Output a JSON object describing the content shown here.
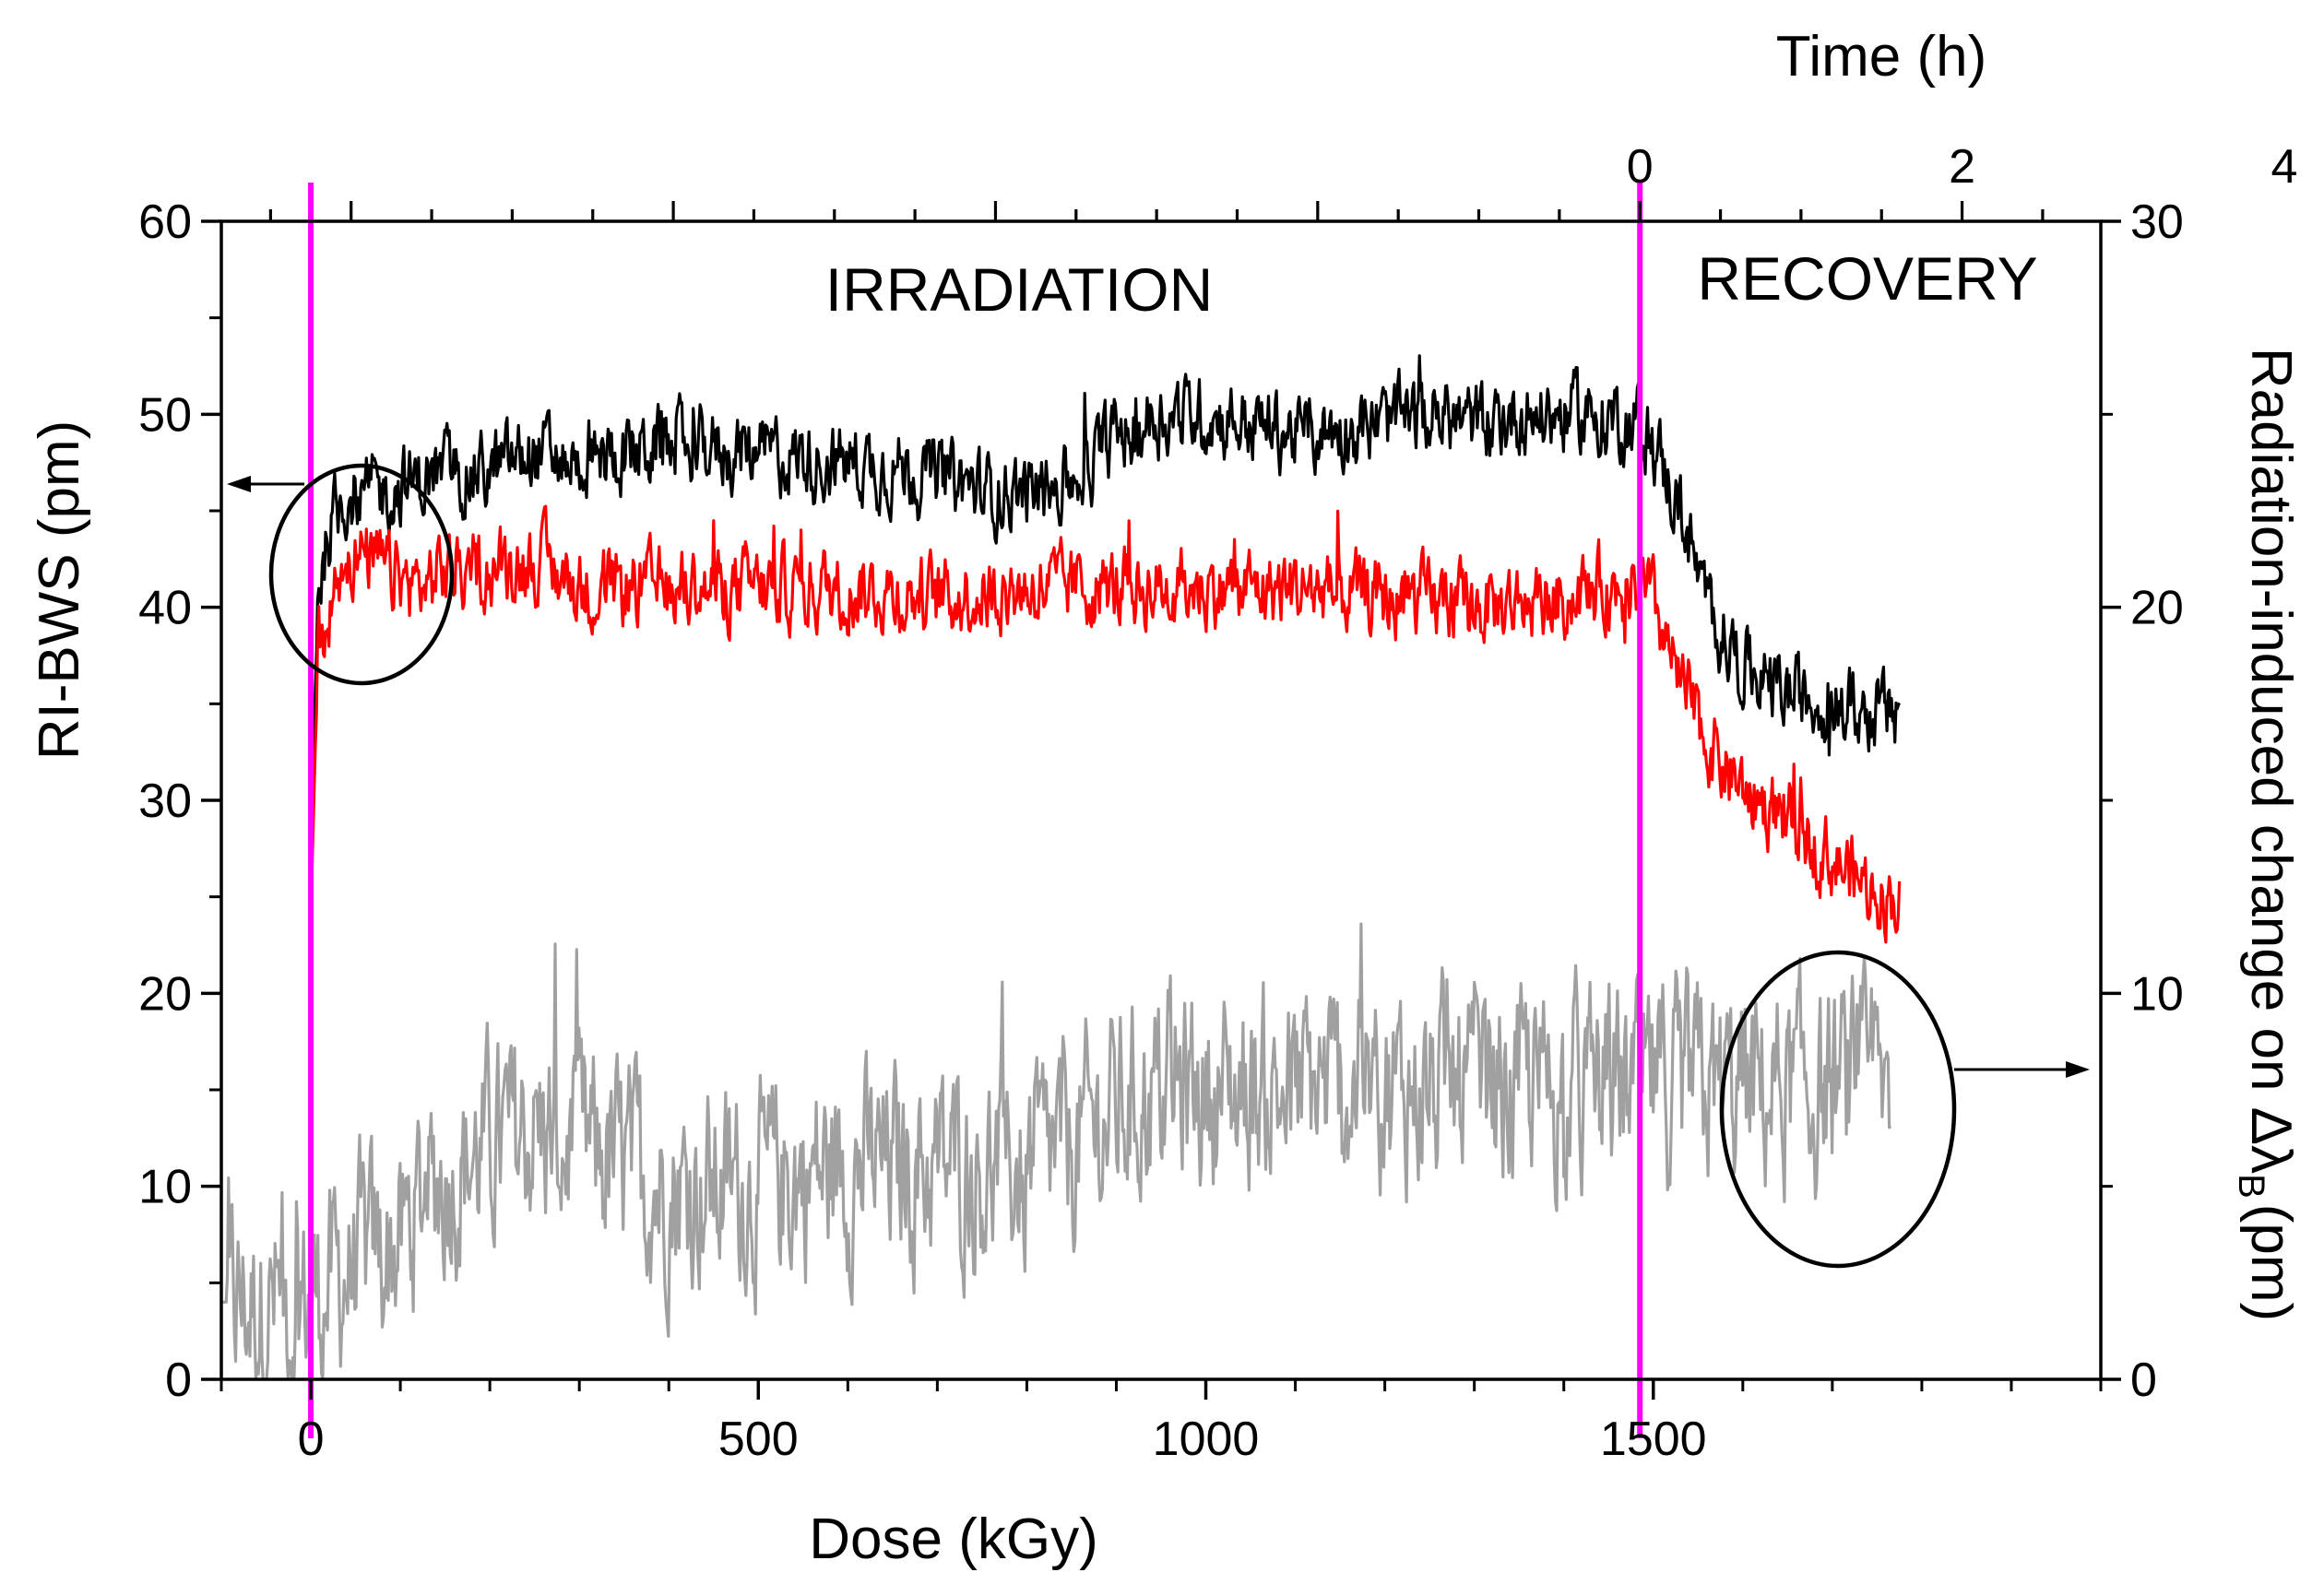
{
  "chart_data": {
    "type": "line",
    "title": "",
    "xlabel": "Dose (kGy)",
    "ylabel": "RI-BWS (pm)",
    "y2label": "Radiation-induced change on Δλ",
    "y2label_sub": "B",
    "y2label_unit": "(pm)",
    "x2label": "Time (h)",
    "xlim": [
      -100,
      2000
    ],
    "ylim": [
      0,
      60
    ],
    "y2lim": [
      0,
      30
    ],
    "x_ticks": [
      0,
      500,
      1000,
      1500
    ],
    "x_tick_labels": [
      "0",
      "500",
      "1000",
      "1500"
    ],
    "y_ticks": [
      0,
      10,
      20,
      30,
      40,
      50,
      60
    ],
    "y_tick_labels": [
      "0",
      "10",
      "20",
      "30",
      "40",
      "50",
      "60"
    ],
    "y2_ticks": [
      0,
      10,
      20,
      30
    ],
    "y2_tick_labels": [
      "0",
      "10",
      "20",
      "30"
    ],
    "x2_ticks_time_h": [
      0,
      2,
      4
    ],
    "x2_tick_labels": [
      "0",
      "2",
      "4"
    ],
    "x2_zero_at_dose": 1485,
    "x2_dose_per_hour": 180,
    "grid": false,
    "annotations": {
      "irradiation": "IRRADIATION",
      "recovery": "RECOVERY"
    },
    "markers": {
      "start_dose": 0,
      "end_irradiation_dose": 1485,
      "color": "#ff00ff"
    },
    "series": [
      {
        "name": "RI-BWS (black)",
        "axis": "left",
        "color": "#000000",
        "x": [
          0,
          8,
          20,
          40,
          80,
          120,
          150,
          200,
          250,
          300,
          400,
          500,
          600,
          700,
          750,
          800,
          850,
          900,
          950,
          1000,
          1100,
          1200,
          1260,
          1300,
          1350,
          1400,
          1450,
          1485,
          1500,
          1530,
          1560,
          1600,
          1650,
          1700,
          1750,
          1775
        ],
        "values": [
          27,
          41,
          44,
          46,
          46,
          46.5,
          47,
          47,
          48,
          47.5,
          48.5,
          48,
          47.5,
          47,
          46,
          46,
          46.5,
          49,
          50,
          50,
          49,
          49.5,
          50,
          49.5,
          50,
          50,
          50,
          49.5,
          48.5,
          45,
          40,
          37,
          35.5,
          35,
          34.5,
          34.5
        ],
        "noise": 2.2
      },
      {
        "name": "RI-BWS (red)",
        "axis": "left",
        "color": "#ff0000",
        "x": [
          0,
          8,
          20,
          40,
          80,
          120,
          150,
          200,
          250,
          300,
          400,
          500,
          600,
          700,
          800,
          900,
          1000,
          1100,
          1200,
          1300,
          1400,
          1450,
          1485,
          1500,
          1530,
          1560,
          1600,
          1650,
          1700,
          1740,
          1775
        ],
        "values": [
          24,
          38,
          40,
          43,
          42,
          41,
          42,
          42,
          42.5,
          41,
          41,
          41,
          41,
          40.5,
          41,
          41,
          41,
          41,
          40.5,
          40,
          40.5,
          41,
          41,
          40,
          36,
          33,
          30.5,
          29,
          27,
          25.5,
          25
        ],
        "noise": 2.2
      },
      {
        "name": "Radiation-induced change on ΔλB (gray)",
        "axis": "right",
        "color": "#a0a0a0",
        "x": [
          -100,
          0,
          50,
          100,
          130,
          200,
          250,
          300,
          400,
          500,
          600,
          700,
          800,
          850,
          900,
          950,
          1000,
          1100,
          1200,
          1300,
          1400,
          1485,
          1550,
          1600,
          1650,
          1700,
          1765
        ],
        "values": [
          2,
          2,
          3,
          3.5,
          5,
          6,
          6.5,
          6,
          5,
          5,
          5.5,
          5.5,
          5.5,
          6,
          7,
          7.5,
          7.5,
          7.5,
          7.5,
          7.5,
          7.5,
          7.5,
          7.5,
          7.5,
          7.5,
          7.5,
          7.5
        ],
        "noise": 2.8
      }
    ]
  }
}
